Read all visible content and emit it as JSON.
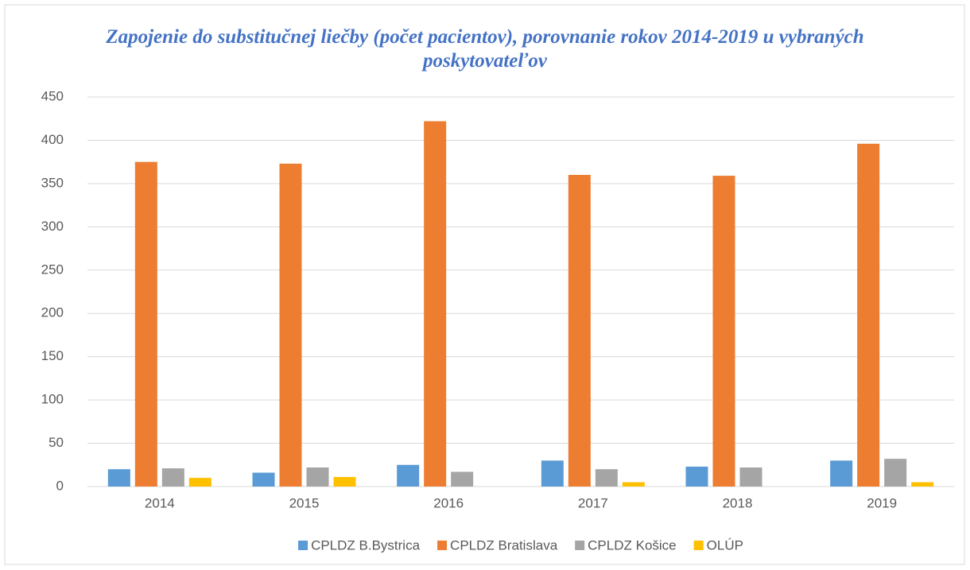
{
  "chart_data": {
    "type": "bar",
    "title": "Zapojenie do substitučnej liečby (počet pacientov), porovnanie rokov 2014-2019 u vybraných poskytovateľov",
    "categories": [
      "2014",
      "2015",
      "2016",
      "2017",
      "2018",
      "2019"
    ],
    "series": [
      {
        "name": "CPLDZ B.Bystrica",
        "color": "#5b9bd5",
        "values": [
          20,
          16,
          25,
          30,
          23,
          30
        ]
      },
      {
        "name": "CPLDZ Bratislava",
        "color": "#ed7d31",
        "values": [
          375,
          373,
          422,
          360,
          359,
          396
        ]
      },
      {
        "name": "CPLDZ Košice",
        "color": "#a5a5a5",
        "values": [
          21,
          22,
          17,
          20,
          22,
          32
        ]
      },
      {
        "name": "OLÚP",
        "color": "#ffc000",
        "values": [
          10,
          11,
          0,
          5,
          0,
          5
        ]
      }
    ],
    "ylim": [
      0,
      450
    ],
    "yticks": [
      0,
      50,
      100,
      150,
      200,
      250,
      300,
      350,
      400,
      450
    ],
    "grid": true,
    "legend": "bottom"
  }
}
